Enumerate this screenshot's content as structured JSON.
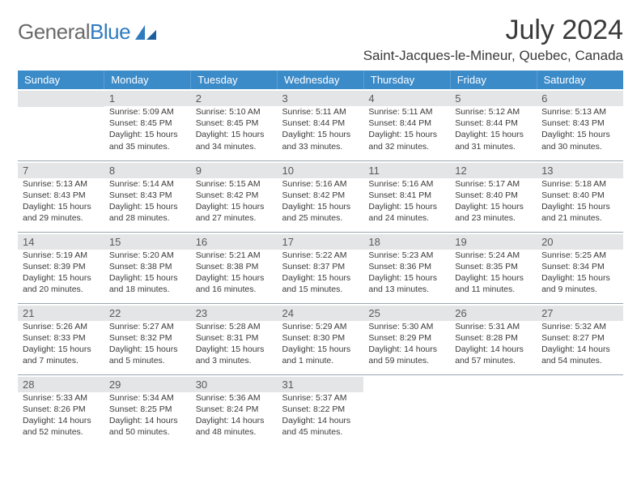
{
  "brand": {
    "part1": "General",
    "part2": "Blue"
  },
  "title": "July 2024",
  "location": "Saint-Jacques-le-Mineur, Quebec, Canada",
  "colors": {
    "header_bg": "#3b8bc9",
    "header_text": "#ffffff",
    "shade_bg": "#e4e5e6",
    "border": "#9aa6ae",
    "text": "#333333",
    "logo_gray": "#6a6a6a",
    "logo_blue": "#2f7bbf"
  },
  "weekdays": [
    "Sunday",
    "Monday",
    "Tuesday",
    "Wednesday",
    "Thursday",
    "Friday",
    "Saturday"
  ],
  "weeks": [
    [
      null,
      {
        "n": "1",
        "sr": "5:09 AM",
        "ss": "8:45 PM",
        "dl": "15 hours and 35 minutes."
      },
      {
        "n": "2",
        "sr": "5:10 AM",
        "ss": "8:45 PM",
        "dl": "15 hours and 34 minutes."
      },
      {
        "n": "3",
        "sr": "5:11 AM",
        "ss": "8:44 PM",
        "dl": "15 hours and 33 minutes."
      },
      {
        "n": "4",
        "sr": "5:11 AM",
        "ss": "8:44 PM",
        "dl": "15 hours and 32 minutes."
      },
      {
        "n": "5",
        "sr": "5:12 AM",
        "ss": "8:44 PM",
        "dl": "15 hours and 31 minutes."
      },
      {
        "n": "6",
        "sr": "5:13 AM",
        "ss": "8:43 PM",
        "dl": "15 hours and 30 minutes."
      }
    ],
    [
      {
        "n": "7",
        "sr": "5:13 AM",
        "ss": "8:43 PM",
        "dl": "15 hours and 29 minutes."
      },
      {
        "n": "8",
        "sr": "5:14 AM",
        "ss": "8:43 PM",
        "dl": "15 hours and 28 minutes."
      },
      {
        "n": "9",
        "sr": "5:15 AM",
        "ss": "8:42 PM",
        "dl": "15 hours and 27 minutes."
      },
      {
        "n": "10",
        "sr": "5:16 AM",
        "ss": "8:42 PM",
        "dl": "15 hours and 25 minutes."
      },
      {
        "n": "11",
        "sr": "5:16 AM",
        "ss": "8:41 PM",
        "dl": "15 hours and 24 minutes."
      },
      {
        "n": "12",
        "sr": "5:17 AM",
        "ss": "8:40 PM",
        "dl": "15 hours and 23 minutes."
      },
      {
        "n": "13",
        "sr": "5:18 AM",
        "ss": "8:40 PM",
        "dl": "15 hours and 21 minutes."
      }
    ],
    [
      {
        "n": "14",
        "sr": "5:19 AM",
        "ss": "8:39 PM",
        "dl": "15 hours and 20 minutes."
      },
      {
        "n": "15",
        "sr": "5:20 AM",
        "ss": "8:38 PM",
        "dl": "15 hours and 18 minutes."
      },
      {
        "n": "16",
        "sr": "5:21 AM",
        "ss": "8:38 PM",
        "dl": "15 hours and 16 minutes."
      },
      {
        "n": "17",
        "sr": "5:22 AM",
        "ss": "8:37 PM",
        "dl": "15 hours and 15 minutes."
      },
      {
        "n": "18",
        "sr": "5:23 AM",
        "ss": "8:36 PM",
        "dl": "15 hours and 13 minutes."
      },
      {
        "n": "19",
        "sr": "5:24 AM",
        "ss": "8:35 PM",
        "dl": "15 hours and 11 minutes."
      },
      {
        "n": "20",
        "sr": "5:25 AM",
        "ss": "8:34 PM",
        "dl": "15 hours and 9 minutes."
      }
    ],
    [
      {
        "n": "21",
        "sr": "5:26 AM",
        "ss": "8:33 PM",
        "dl": "15 hours and 7 minutes."
      },
      {
        "n": "22",
        "sr": "5:27 AM",
        "ss": "8:32 PM",
        "dl": "15 hours and 5 minutes."
      },
      {
        "n": "23",
        "sr": "5:28 AM",
        "ss": "8:31 PM",
        "dl": "15 hours and 3 minutes."
      },
      {
        "n": "24",
        "sr": "5:29 AM",
        "ss": "8:30 PM",
        "dl": "15 hours and 1 minute."
      },
      {
        "n": "25",
        "sr": "5:30 AM",
        "ss": "8:29 PM",
        "dl": "14 hours and 59 minutes."
      },
      {
        "n": "26",
        "sr": "5:31 AM",
        "ss": "8:28 PM",
        "dl": "14 hours and 57 minutes."
      },
      {
        "n": "27",
        "sr": "5:32 AM",
        "ss": "8:27 PM",
        "dl": "14 hours and 54 minutes."
      }
    ],
    [
      {
        "n": "28",
        "sr": "5:33 AM",
        "ss": "8:26 PM",
        "dl": "14 hours and 52 minutes."
      },
      {
        "n": "29",
        "sr": "5:34 AM",
        "ss": "8:25 PM",
        "dl": "14 hours and 50 minutes."
      },
      {
        "n": "30",
        "sr": "5:36 AM",
        "ss": "8:24 PM",
        "dl": "14 hours and 48 minutes."
      },
      {
        "n": "31",
        "sr": "5:37 AM",
        "ss": "8:22 PM",
        "dl": "14 hours and 45 minutes."
      },
      null,
      null,
      null
    ]
  ],
  "labels": {
    "sunrise": "Sunrise:",
    "sunset": "Sunset:",
    "daylight": "Daylight:"
  }
}
